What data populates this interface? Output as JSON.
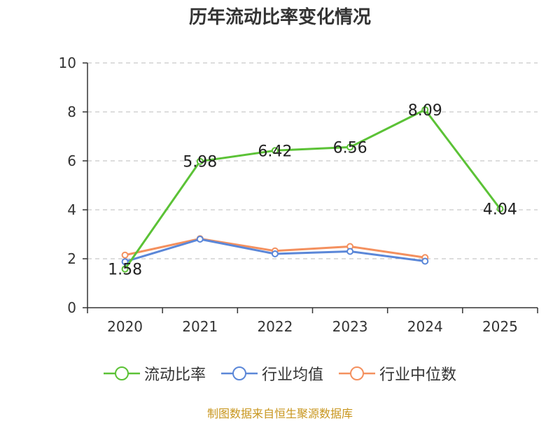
{
  "chart_data": {
    "type": "line",
    "title": "历年流动比率变化情况",
    "categories": [
      "2020",
      "2021",
      "2022",
      "2023",
      "2024",
      "2025"
    ],
    "ylim": [
      0,
      10
    ],
    "yticks": [
      0,
      2,
      4,
      6,
      8,
      10
    ],
    "grid": true,
    "legend_position": "bottom",
    "series": [
      {
        "name": "流动比率",
        "color": "#5bc236",
        "values": [
          1.58,
          5.98,
          6.42,
          6.56,
          8.09,
          4.04
        ],
        "show_labels": true
      },
      {
        "name": "行业均值",
        "color": "#5b87d8",
        "values": [
          1.88,
          2.8,
          2.2,
          2.3,
          1.9,
          null
        ],
        "show_labels": false
      },
      {
        "name": "行业中位数",
        "color": "#f4905e",
        "values": [
          2.15,
          2.82,
          2.32,
          2.5,
          2.05,
          null
        ],
        "show_labels": false
      }
    ],
    "data_labels": [
      "1.58",
      "5.98",
      "6.42",
      "6.56",
      "8.09",
      "4.04"
    ]
  },
  "footer": {
    "source": "制图数据来自恒生聚源数据库"
  }
}
